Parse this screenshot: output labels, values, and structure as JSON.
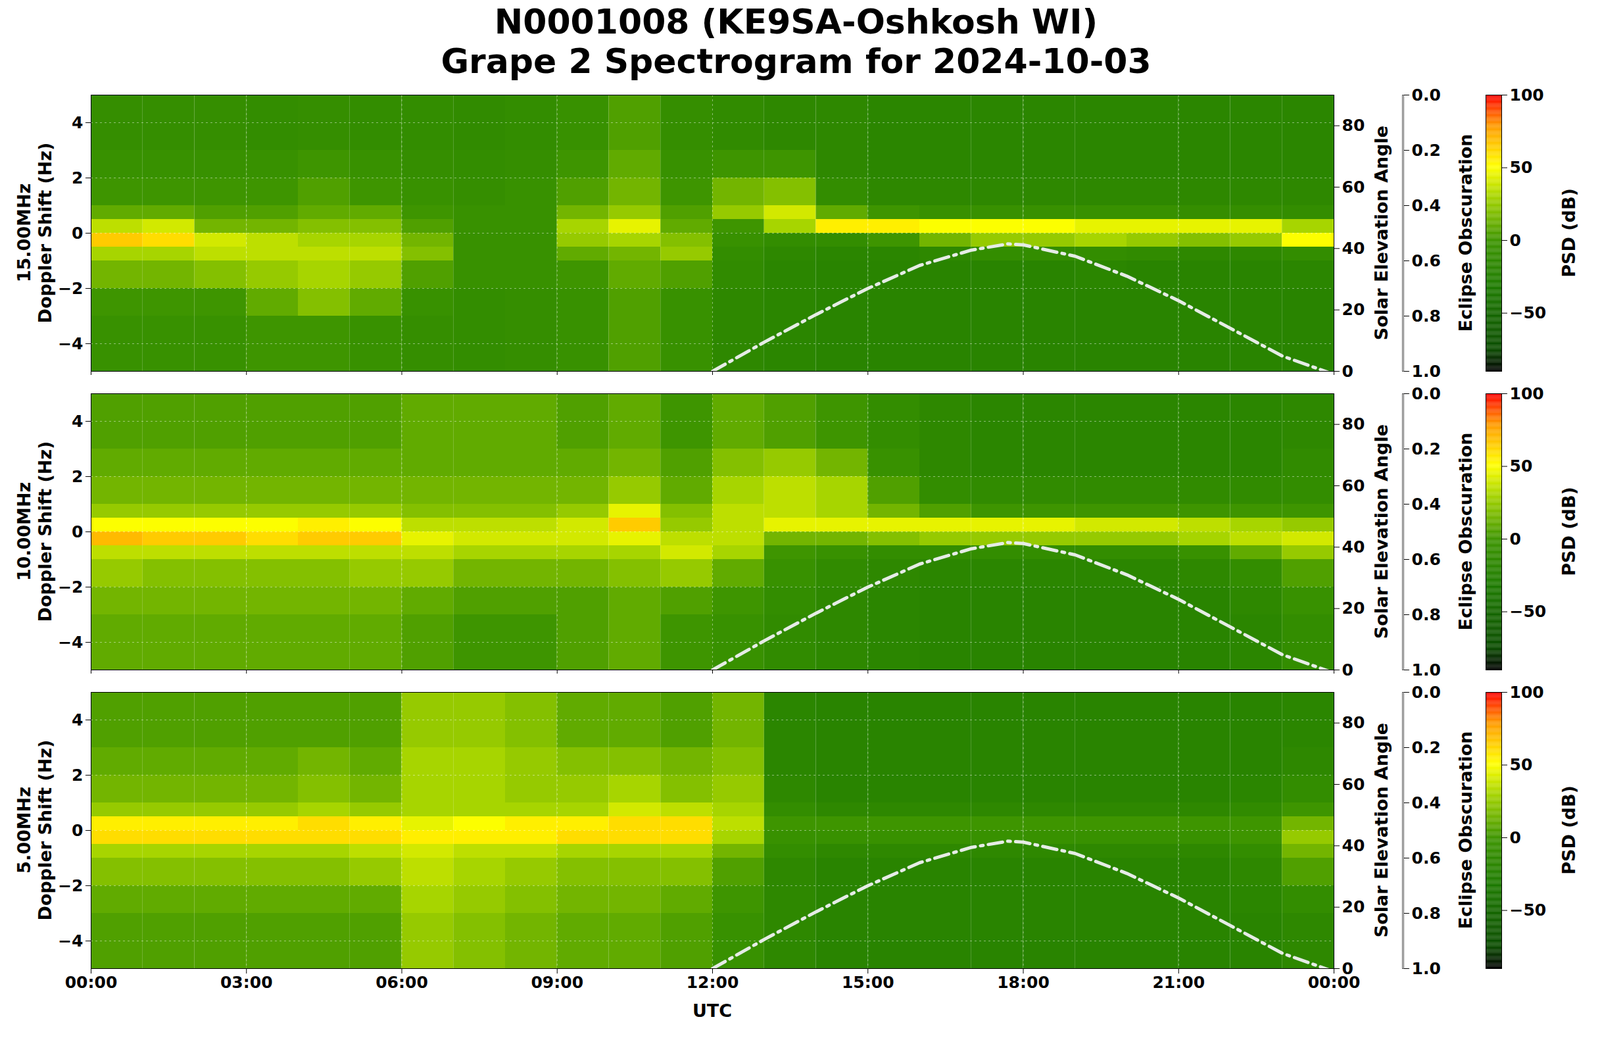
{
  "chart_data": {
    "type": "heatmap",
    "title": "N0001008 (KE9SA-Oshkosh WI)",
    "subtitle": "Grape 2 Spectrogram for 2024-10-03",
    "xlabel": "UTC",
    "xlim": [
      0,
      24
    ],
    "xticks": [
      {
        "value": 0,
        "label": "00:00"
      },
      {
        "value": 3,
        "label": "03:00"
      },
      {
        "value": 6,
        "label": "06:00"
      },
      {
        "value": 9,
        "label": "09:00"
      },
      {
        "value": 12,
        "label": "12:00"
      },
      {
        "value": 15,
        "label": "15:00"
      },
      {
        "value": 18,
        "label": "18:00"
      },
      {
        "value": 21,
        "label": "21:00"
      },
      {
        "value": 24,
        "label": "00:00"
      }
    ],
    "ylabel": "Doppler Shift (Hz)",
    "ylim": [
      -5,
      5
    ],
    "yticks": [
      -4,
      -2,
      0,
      2,
      4
    ],
    "y2label": "Solar Elevation Angle",
    "y2lim": [
      0,
      90
    ],
    "y2ticks": [
      0,
      20,
      40,
      60,
      80
    ],
    "grid": true,
    "solar_elevation": {
      "axis": "y2",
      "line_style": "dashdot",
      "color": "#e6ece6",
      "x": [
        12,
        13,
        14,
        15,
        16,
        17,
        17.7,
        18,
        19,
        20,
        21,
        22,
        23,
        24
      ],
      "values": [
        0,
        9.5,
        18.5,
        27,
        34.5,
        39.5,
        41.5,
        41.2,
        37.5,
        31,
        23,
        14,
        5,
        -1
      ]
    },
    "eclipse": {
      "label": "Eclipse Obscuration",
      "lim": [
        1,
        0
      ],
      "ticks": [
        {
          "value": 0,
          "label": "0.0"
        },
        {
          "value": 0.2,
          "label": "0.2"
        },
        {
          "value": 0.4,
          "label": "0.4"
        },
        {
          "value": 0.6,
          "label": "0.6"
        },
        {
          "value": 0.8,
          "label": "0.8"
        },
        {
          "value": 1,
          "label": "1.0"
        }
      ]
    },
    "colorbar": {
      "label": "PSD (dB)",
      "lim": [
        -90,
        100
      ],
      "ticks": [
        -50,
        0,
        50,
        100
      ]
    },
    "x_edges": [
      0,
      1,
      2,
      3,
      4,
      5,
      6,
      7,
      8,
      9,
      10,
      11,
      12,
      13,
      14,
      15,
      16,
      17,
      18,
      19,
      20,
      21,
      22,
      23,
      24
    ],
    "y_edges": [
      -5,
      -3,
      -2,
      -1,
      -0.5,
      0,
      0.5,
      1,
      2,
      3,
      5
    ],
    "panels": [
      {
        "frequency": "15.00MHz",
        "z": [
          [
            -5,
            -5,
            -5,
            0,
            0,
            -5,
            -8,
            -10,
            -8,
            -5,
            5,
            -5,
            -15,
            -18,
            -20,
            -20,
            -20,
            -20,
            -20,
            -20,
            -20,
            -20,
            -20,
            -20
          ],
          [
            0,
            0,
            0,
            10,
            20,
            10,
            -5,
            -10,
            -8,
            -5,
            5,
            -5,
            -15,
            -18,
            -20,
            -20,
            -20,
            -20,
            -20,
            -20,
            -20,
            -20,
            -20,
            -20
          ],
          [
            15,
            15,
            20,
            25,
            30,
            25,
            5,
            -5,
            -5,
            0,
            10,
            5,
            -12,
            -18,
            -20,
            -20,
            -20,
            -20,
            -20,
            -18,
            -20,
            -20,
            -20,
            -18
          ],
          [
            30,
            30,
            35,
            35,
            35,
            35,
            20,
            -5,
            -5,
            10,
            15,
            25,
            -10,
            -15,
            -18,
            -18,
            -15,
            -10,
            -10,
            -10,
            -12,
            -15,
            -15,
            -10
          ],
          [
            65,
            60,
            40,
            35,
            30,
            30,
            15,
            -5,
            -5,
            25,
            30,
            20,
            -5,
            -10,
            -10,
            0,
            15,
            25,
            25,
            30,
            25,
            20,
            25,
            50
          ],
          [
            35,
            40,
            15,
            15,
            20,
            20,
            5,
            -5,
            -5,
            30,
            45,
            10,
            0,
            30,
            55,
            55,
            50,
            50,
            50,
            45,
            45,
            45,
            45,
            30
          ],
          [
            10,
            10,
            5,
            5,
            10,
            10,
            0,
            -5,
            -5,
            15,
            25,
            5,
            25,
            40,
            10,
            0,
            -5,
            -5,
            -5,
            -5,
            -5,
            -8,
            -8,
            -10
          ],
          [
            0,
            0,
            0,
            0,
            5,
            0,
            -5,
            -8,
            -5,
            5,
            15,
            0,
            15,
            20,
            -10,
            -15,
            -15,
            -15,
            -15,
            -15,
            -15,
            -15,
            -15,
            -15
          ],
          [
            -5,
            -5,
            -5,
            -5,
            0,
            -5,
            -8,
            -10,
            -8,
            0,
            10,
            -5,
            0,
            0,
            -15,
            -18,
            -18,
            -18,
            -18,
            -18,
            -18,
            -18,
            -18,
            -18
          ],
          [
            -8,
            -8,
            -8,
            -10,
            -8,
            -10,
            -10,
            -12,
            -10,
            -5,
            5,
            -8,
            -12,
            -15,
            -15,
            -18,
            -18,
            -18,
            -18,
            -18,
            -18,
            -18,
            -18,
            -18
          ]
        ]
      },
      {
        "frequency": "10.00MHz",
        "z": [
          [
            10,
            10,
            10,
            10,
            10,
            10,
            5,
            0,
            0,
            5,
            10,
            0,
            -5,
            -12,
            -15,
            -18,
            -20,
            -20,
            -20,
            -20,
            -20,
            -20,
            -18,
            -10
          ],
          [
            15,
            15,
            15,
            15,
            15,
            15,
            10,
            5,
            5,
            5,
            10,
            5,
            0,
            -10,
            -15,
            -18,
            -20,
            -20,
            -20,
            -20,
            -20,
            -20,
            -15,
            -5
          ],
          [
            25,
            20,
            20,
            20,
            20,
            25,
            25,
            15,
            15,
            15,
            20,
            25,
            10,
            -5,
            -12,
            -15,
            -18,
            -18,
            -18,
            -18,
            -18,
            -15,
            -10,
            5
          ],
          [
            35,
            35,
            35,
            35,
            35,
            35,
            35,
            30,
            30,
            30,
            30,
            40,
            30,
            0,
            -5,
            -10,
            -10,
            -10,
            -10,
            -10,
            -10,
            -5,
            10,
            25
          ],
          [
            70,
            65,
            65,
            60,
            65,
            65,
            45,
            40,
            40,
            40,
            45,
            35,
            35,
            15,
            15,
            20,
            25,
            25,
            25,
            25,
            25,
            30,
            35,
            40
          ],
          [
            50,
            50,
            50,
            50,
            55,
            50,
            35,
            35,
            35,
            40,
            65,
            25,
            35,
            45,
            45,
            45,
            45,
            45,
            45,
            40,
            40,
            35,
            30,
            25
          ],
          [
            25,
            25,
            25,
            25,
            25,
            25,
            20,
            20,
            20,
            25,
            45,
            20,
            35,
            35,
            30,
            15,
            5,
            0,
            0,
            0,
            0,
            0,
            0,
            0
          ],
          [
            15,
            15,
            15,
            15,
            15,
            15,
            15,
            15,
            15,
            15,
            25,
            10,
            30,
            35,
            30,
            5,
            -10,
            -12,
            -12,
            -12,
            -12,
            -12,
            -12,
            -10
          ],
          [
            10,
            10,
            10,
            10,
            10,
            10,
            10,
            10,
            10,
            10,
            15,
            5,
            20,
            25,
            15,
            -5,
            -15,
            -18,
            -18,
            -18,
            -18,
            -18,
            -18,
            -12
          ],
          [
            5,
            5,
            5,
            5,
            5,
            5,
            10,
            10,
            10,
            5,
            10,
            0,
            10,
            5,
            0,
            -10,
            -15,
            -18,
            -18,
            -18,
            -18,
            -18,
            -18,
            -15
          ]
        ]
      },
      {
        "frequency": "5.00MHz",
        "z": [
          [
            5,
            5,
            5,
            5,
            5,
            5,
            25,
            20,
            15,
            10,
            10,
            5,
            -5,
            -15,
            -20,
            -20,
            -20,
            -20,
            -20,
            -20,
            -20,
            -20,
            -20,
            -15
          ],
          [
            10,
            10,
            10,
            10,
            10,
            10,
            30,
            25,
            20,
            15,
            15,
            10,
            0,
            -15,
            -20,
            -20,
            -20,
            -20,
            -20,
            -20,
            -20,
            -20,
            -18,
            -10
          ],
          [
            20,
            20,
            20,
            20,
            20,
            25,
            35,
            30,
            25,
            20,
            20,
            20,
            5,
            -15,
            -20,
            -20,
            -20,
            -20,
            -20,
            -20,
            -20,
            -20,
            -15,
            5
          ],
          [
            30,
            30,
            30,
            30,
            30,
            35,
            40,
            35,
            35,
            30,
            30,
            30,
            15,
            -10,
            -15,
            -15,
            -15,
            -15,
            -15,
            -15,
            -15,
            -15,
            -10,
            15
          ],
          [
            60,
            60,
            60,
            60,
            60,
            60,
            55,
            55,
            55,
            60,
            60,
            60,
            30,
            -5,
            -5,
            -5,
            -5,
            -5,
            -5,
            -5,
            -5,
            -5,
            0,
            25
          ],
          [
            55,
            55,
            55,
            55,
            60,
            55,
            45,
            50,
            55,
            55,
            60,
            60,
            35,
            0,
            0,
            0,
            0,
            0,
            0,
            0,
            0,
            0,
            0,
            15
          ],
          [
            25,
            25,
            25,
            25,
            30,
            25,
            30,
            30,
            30,
            30,
            40,
            35,
            30,
            -10,
            -15,
            -15,
            -15,
            -15,
            -15,
            -15,
            -15,
            -15,
            -12,
            0
          ],
          [
            15,
            15,
            15,
            15,
            20,
            15,
            30,
            30,
            25,
            25,
            30,
            20,
            25,
            -15,
            -20,
            -20,
            -20,
            -20,
            -20,
            -20,
            -20,
            -20,
            -18,
            -10
          ],
          [
            10,
            10,
            10,
            10,
            15,
            10,
            30,
            30,
            25,
            20,
            20,
            15,
            20,
            -18,
            -20,
            -20,
            -20,
            -20,
            -20,
            -20,
            -20,
            -20,
            -20,
            -15
          ],
          [
            5,
            5,
            5,
            5,
            5,
            5,
            25,
            25,
            20,
            10,
            10,
            5,
            15,
            -18,
            -20,
            -20,
            -20,
            -20,
            -20,
            -20,
            -20,
            -20,
            -20,
            -18
          ]
        ]
      }
    ]
  }
}
